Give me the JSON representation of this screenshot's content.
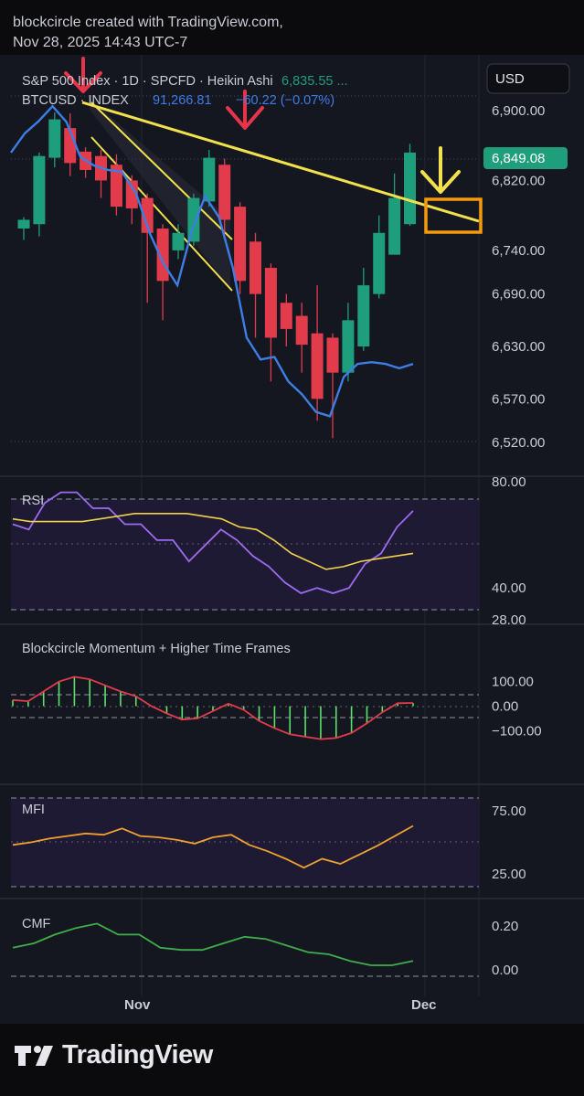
{
  "header": {
    "line1": "blockcircle created with TradingView.com,",
    "line2": "Nov 28, 2025 14:43 UTC-7"
  },
  "legend": {
    "symbol1": "S&P 500 Index · 1D · SPCFD · Heikin Ashi",
    "symbol1_value": "6,835.55 ...",
    "symbol2": "BTCUSD · INDEX",
    "symbol2_value": "91,266.81",
    "symbol2_change": "−60.22 (−0.07%)"
  },
  "currency_button": "USD",
  "last_price": "6,849.08",
  "colors": {
    "up": "#1e9e7a",
    "down": "#e23c4c",
    "btc": "#3d7de6",
    "trendline": "#f2e14c",
    "arrow_red": "#e8344a",
    "arrow_yellow": "#f2e14c",
    "box": "#f59a0c",
    "rsi": "#9c6cf0",
    "rsi_ma": "#f2d14c",
    "mfi": "#f0a030",
    "cmf": "#3fae4a"
  },
  "chart_data": [
    {
      "type": "candlestick",
      "title": "S&P 500 Index · 1D · SPCFD · Heikin Ashi",
      "axis_labels": [
        "6,900.00",
        "6,820.00",
        "6,740.00",
        "6,690.00",
        "6,630.00",
        "6,570.00",
        "6,520.00"
      ],
      "ylim": [
        6495,
        6945
      ],
      "candles": [
        {
          "o": 6765,
          "c": 6775,
          "h": 6778,
          "l": 6752
        },
        {
          "o": 6770,
          "c": 6848,
          "h": 6852,
          "l": 6756
        },
        {
          "o": 6846,
          "c": 6890,
          "h": 6898,
          "l": 6835
        },
        {
          "o": 6880,
          "c": 6840,
          "h": 6897,
          "l": 6825
        },
        {
          "o": 6853,
          "c": 6832,
          "h": 6858,
          "l": 6823
        },
        {
          "o": 6848,
          "c": 6820,
          "h": 6855,
          "l": 6800
        },
        {
          "o": 6838,
          "c": 6790,
          "h": 6850,
          "l": 6780
        },
        {
          "o": 6820,
          "c": 6788,
          "h": 6826,
          "l": 6770
        },
        {
          "o": 6800,
          "c": 6760,
          "h": 6805,
          "l": 6680
        },
        {
          "o": 6765,
          "c": 6705,
          "h": 6770,
          "l": 6660
        },
        {
          "o": 6740,
          "c": 6760,
          "h": 6770,
          "l": 6730
        },
        {
          "o": 6750,
          "c": 6800,
          "h": 6805,
          "l": 6745
        },
        {
          "o": 6796,
          "c": 6846,
          "h": 6855,
          "l": 6790
        },
        {
          "o": 6838,
          "c": 6775,
          "h": 6845,
          "l": 6760
        },
        {
          "o": 6790,
          "c": 6705,
          "h": 6795,
          "l": 6690
        },
        {
          "o": 6750,
          "c": 6690,
          "h": 6760,
          "l": 6640
        },
        {
          "o": 6720,
          "c": 6640,
          "h": 6725,
          "l": 6590
        },
        {
          "o": 6680,
          "c": 6650,
          "h": 6690,
          "l": 6630
        },
        {
          "o": 6665,
          "c": 6632,
          "h": 6680,
          "l": 6600
        },
        {
          "o": 6645,
          "c": 6570,
          "h": 6700,
          "l": 6545
        },
        {
          "o": 6640,
          "c": 6600,
          "h": 6645,
          "l": 6525
        },
        {
          "o": 6600,
          "c": 6660,
          "h": 6680,
          "l": 6590
        },
        {
          "o": 6630,
          "c": 6700,
          "h": 6720,
          "l": 6625
        },
        {
          "o": 6690,
          "c": 6760,
          "h": 6780,
          "l": 6685
        },
        {
          "o": 6735,
          "c": 6800,
          "h": 6828,
          "l": 6735
        },
        {
          "o": 6770,
          "c": 6852,
          "h": 6862,
          "l": 6768
        }
      ],
      "btc_overlay": [
        6852,
        6874,
        6888,
        6905,
        6887,
        6847,
        6837,
        6832,
        6830,
        6806,
        6760,
        6725,
        6700,
        6760,
        6802,
        6778,
        6720,
        6640,
        6615,
        6618,
        6590,
        6575,
        6555,
        6550,
        6595,
        6610,
        6612,
        6610,
        6605,
        6610
      ]
    },
    {
      "type": "line",
      "title": "RSI",
      "axis_labels": [
        "80.00",
        "40.00",
        "28.00"
      ],
      "ylim": [
        28,
        80
      ],
      "rsi": [
        64,
        62,
        72,
        76,
        76,
        70,
        70,
        64,
        64,
        58,
        58,
        50,
        56,
        62,
        58,
        52,
        48,
        42,
        38,
        40,
        38,
        40,
        49,
        53,
        63,
        69
      ],
      "rsi_ma": [
        66,
        65,
        65,
        65,
        65,
        66,
        67,
        68,
        68,
        68,
        68,
        67,
        66,
        63,
        62,
        58,
        53,
        50,
        47,
        48,
        50,
        51,
        52,
        53
      ]
    },
    {
      "type": "bar",
      "title": "Blockcircle Momentum + Higher Time Frames",
      "axis_labels": [
        "100.00",
        "0.00",
        "−100.00"
      ],
      "ylim": [
        -170,
        170
      ],
      "values": [
        25,
        20,
        60,
        100,
        120,
        110,
        85,
        60,
        40,
        0,
        -30,
        -55,
        -50,
        -20,
        10,
        -15,
        -60,
        -90,
        -115,
        -125,
        -135,
        -130,
        -110,
        -70,
        -25,
        12,
        13
      ]
    },
    {
      "type": "line",
      "title": "MFI",
      "axis_labels": [
        "75.00",
        "25.00"
      ],
      "ylim": [
        20,
        80
      ],
      "values": [
        48,
        50,
        53,
        55,
        57,
        56,
        61,
        55,
        54,
        52,
        49,
        54,
        56,
        48,
        43,
        37,
        30,
        37,
        33,
        40,
        47,
        55,
        63
      ]
    },
    {
      "type": "line",
      "title": "CMF",
      "axis_labels": [
        "0.20",
        "0.00"
      ],
      "ylim": [
        -0.03,
        0.27
      ],
      "values": [
        0.1,
        0.12,
        0.16,
        0.19,
        0.21,
        0.16,
        0.16,
        0.1,
        0.09,
        0.09,
        0.12,
        0.15,
        0.14,
        0.11,
        0.08,
        0.07,
        0.04,
        0.02,
        0.02,
        0.04
      ]
    }
  ],
  "x_axis": {
    "labels": [
      "Nov",
      "Dec"
    ]
  },
  "footer": {
    "brand": "TradingView"
  }
}
